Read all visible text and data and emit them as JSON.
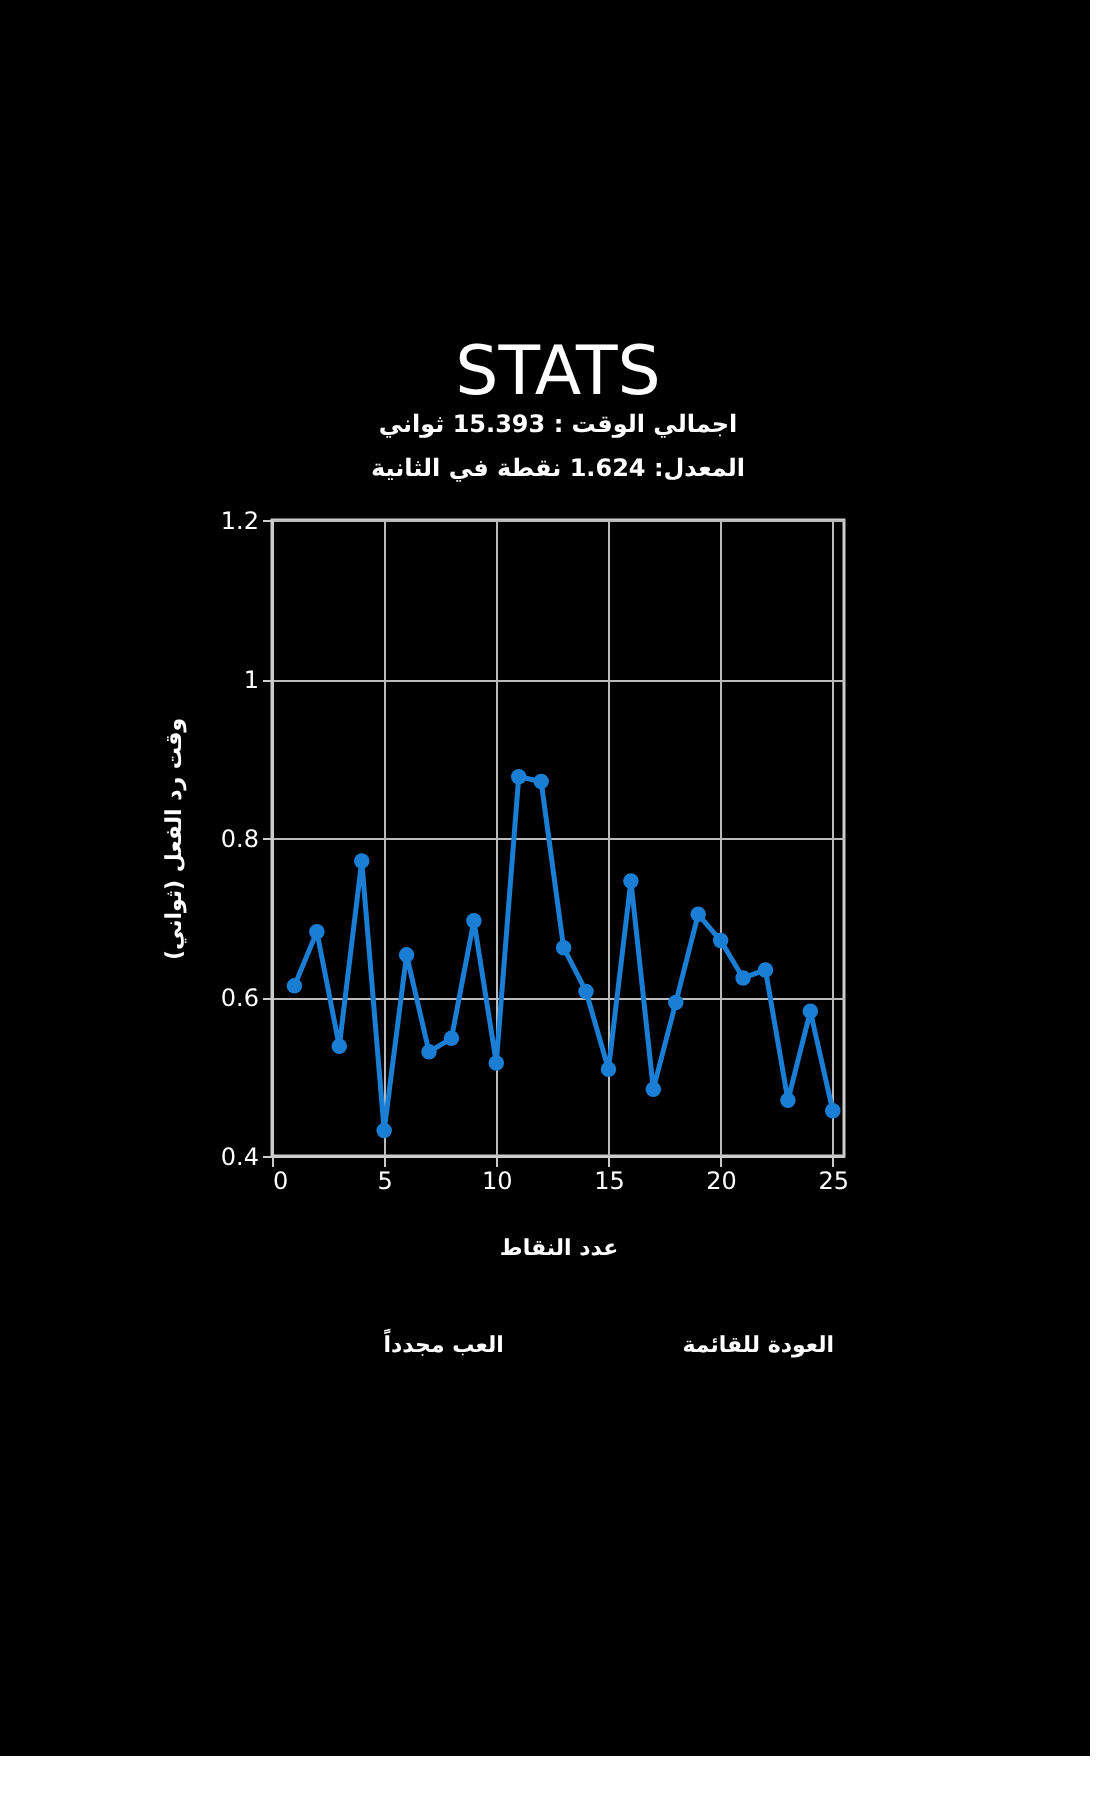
{
  "chart_data": {
    "type": "line",
    "title": "STATS",
    "subtitle": "اجمالي الوقت : 15.393 ثواني",
    "annotations": [
      "المعدل: 1.624 نقطة في الثانية",
      "العب مجدداً",
      "العودة للقائمة"
    ],
    "xlabel": "عدد النقاط",
    "ylabel": "وقت رد الفعل (ثواني)",
    "x": [
      1,
      2,
      3,
      4,
      5,
      6,
      7,
      8,
      9,
      10,
      11,
      12,
      13,
      14,
      15,
      16,
      17,
      18,
      19,
      20,
      21,
      22,
      23,
      24,
      25
    ],
    "series": [
      {
        "color": "#1a7fd4",
        "values": [
          0.614,
          0.682,
          0.538,
          0.771,
          0.432,
          0.653,
          0.531,
          0.548,
          0.696,
          0.517,
          0.877,
          0.871,
          0.662,
          0.607,
          0.509,
          0.746,
          0.484,
          0.593,
          0.704,
          0.671,
          0.624,
          0.634,
          0.47,
          0.582,
          0.457
        ]
      }
    ],
    "xlim": [
      0,
      25.5
    ],
    "xticks": [
      0,
      5,
      10,
      15,
      20,
      25
    ],
    "ylim": [
      0.4,
      1.2
    ],
    "yticks": [
      0.4,
      0.6,
      0.8,
      1,
      1.2
    ],
    "grid": true,
    "marker": "circle",
    "line_style": "solid"
  }
}
